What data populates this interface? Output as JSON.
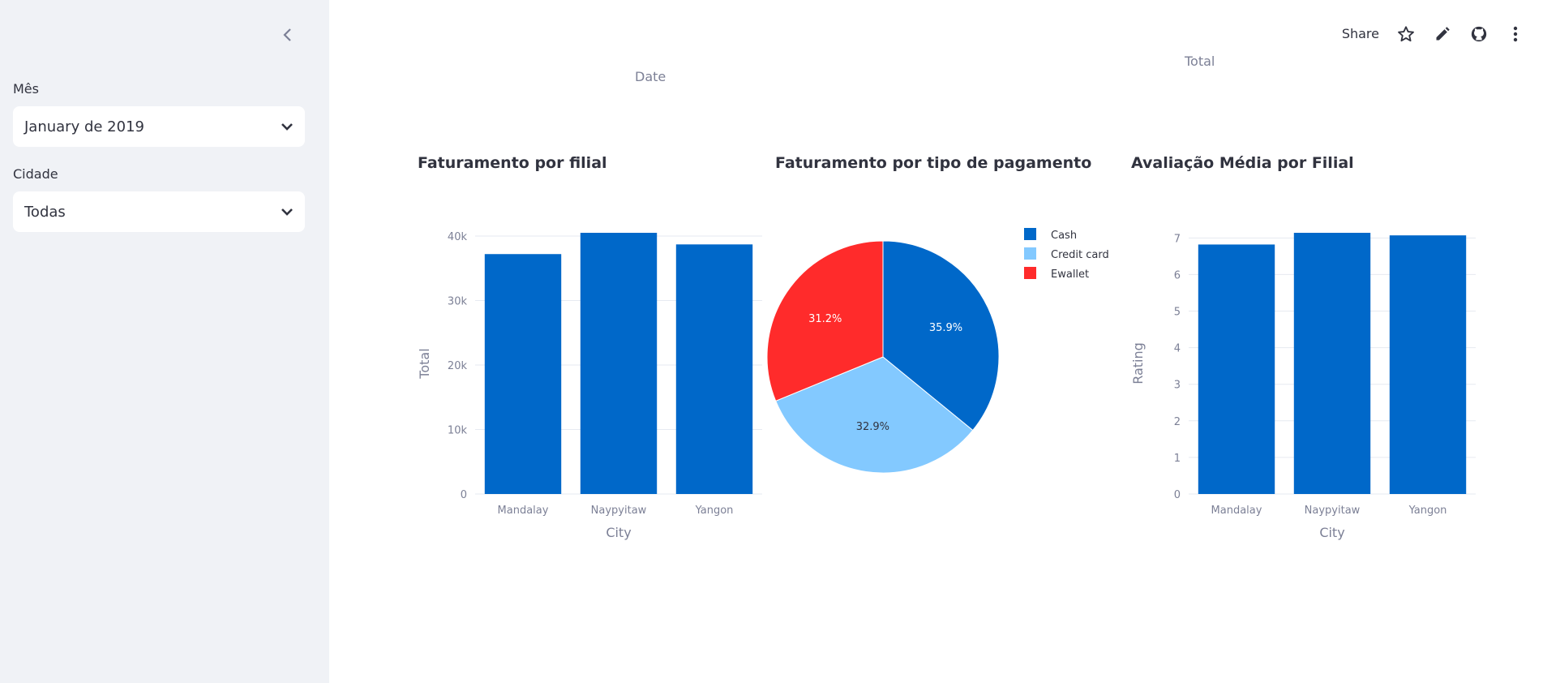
{
  "sidebar": {
    "filters": [
      {
        "label": "Mês",
        "value": "January de 2019"
      },
      {
        "label": "Cidade",
        "value": "Todas"
      }
    ]
  },
  "toolbar": {
    "share_label": "Share"
  },
  "stray_labels": {
    "date": "Date",
    "total": "Total"
  },
  "chart_data": [
    {
      "type": "bar",
      "title": "Faturamento por filial",
      "categories": [
        "Mandalay",
        "Naypyitaw",
        "Yangon"
      ],
      "values": [
        37200,
        40500,
        38700
      ],
      "xlabel": "City",
      "ylabel": "Total",
      "ylim": [
        0,
        40500
      ],
      "yticks": [
        0,
        10000,
        20000,
        30000,
        40000
      ],
      "ytick_labels": [
        "0",
        "10k",
        "20k",
        "30k",
        "40k"
      ],
      "color": "#0068c9",
      "grid": true
    },
    {
      "type": "pie",
      "title": "Faturamento por tipo de pagamento",
      "labels": [
        "Cash",
        "Credit card",
        "Ewallet"
      ],
      "values": [
        35.9,
        32.9,
        31.2
      ],
      "value_labels": [
        "35.9%",
        "32.9%",
        "31.2%"
      ],
      "colors": [
        "#0068c9",
        "#83c9ff",
        "#ff2b2b"
      ],
      "legend": "top-right"
    },
    {
      "type": "bar",
      "title": "Avaliação Média por Filial",
      "categories": [
        "Mandalay",
        "Naypyitaw",
        "Yangon"
      ],
      "values": [
        6.82,
        7.14,
        7.07
      ],
      "xlabel": "City",
      "ylabel": "Rating",
      "ylim": [
        0,
        7.14
      ],
      "yticks": [
        0,
        1,
        2,
        3,
        4,
        5,
        6,
        7
      ],
      "ytick_labels": [
        "0",
        "1",
        "2",
        "3",
        "4",
        "5",
        "6",
        "7"
      ],
      "color": "#0068c9",
      "grid": true
    }
  ]
}
